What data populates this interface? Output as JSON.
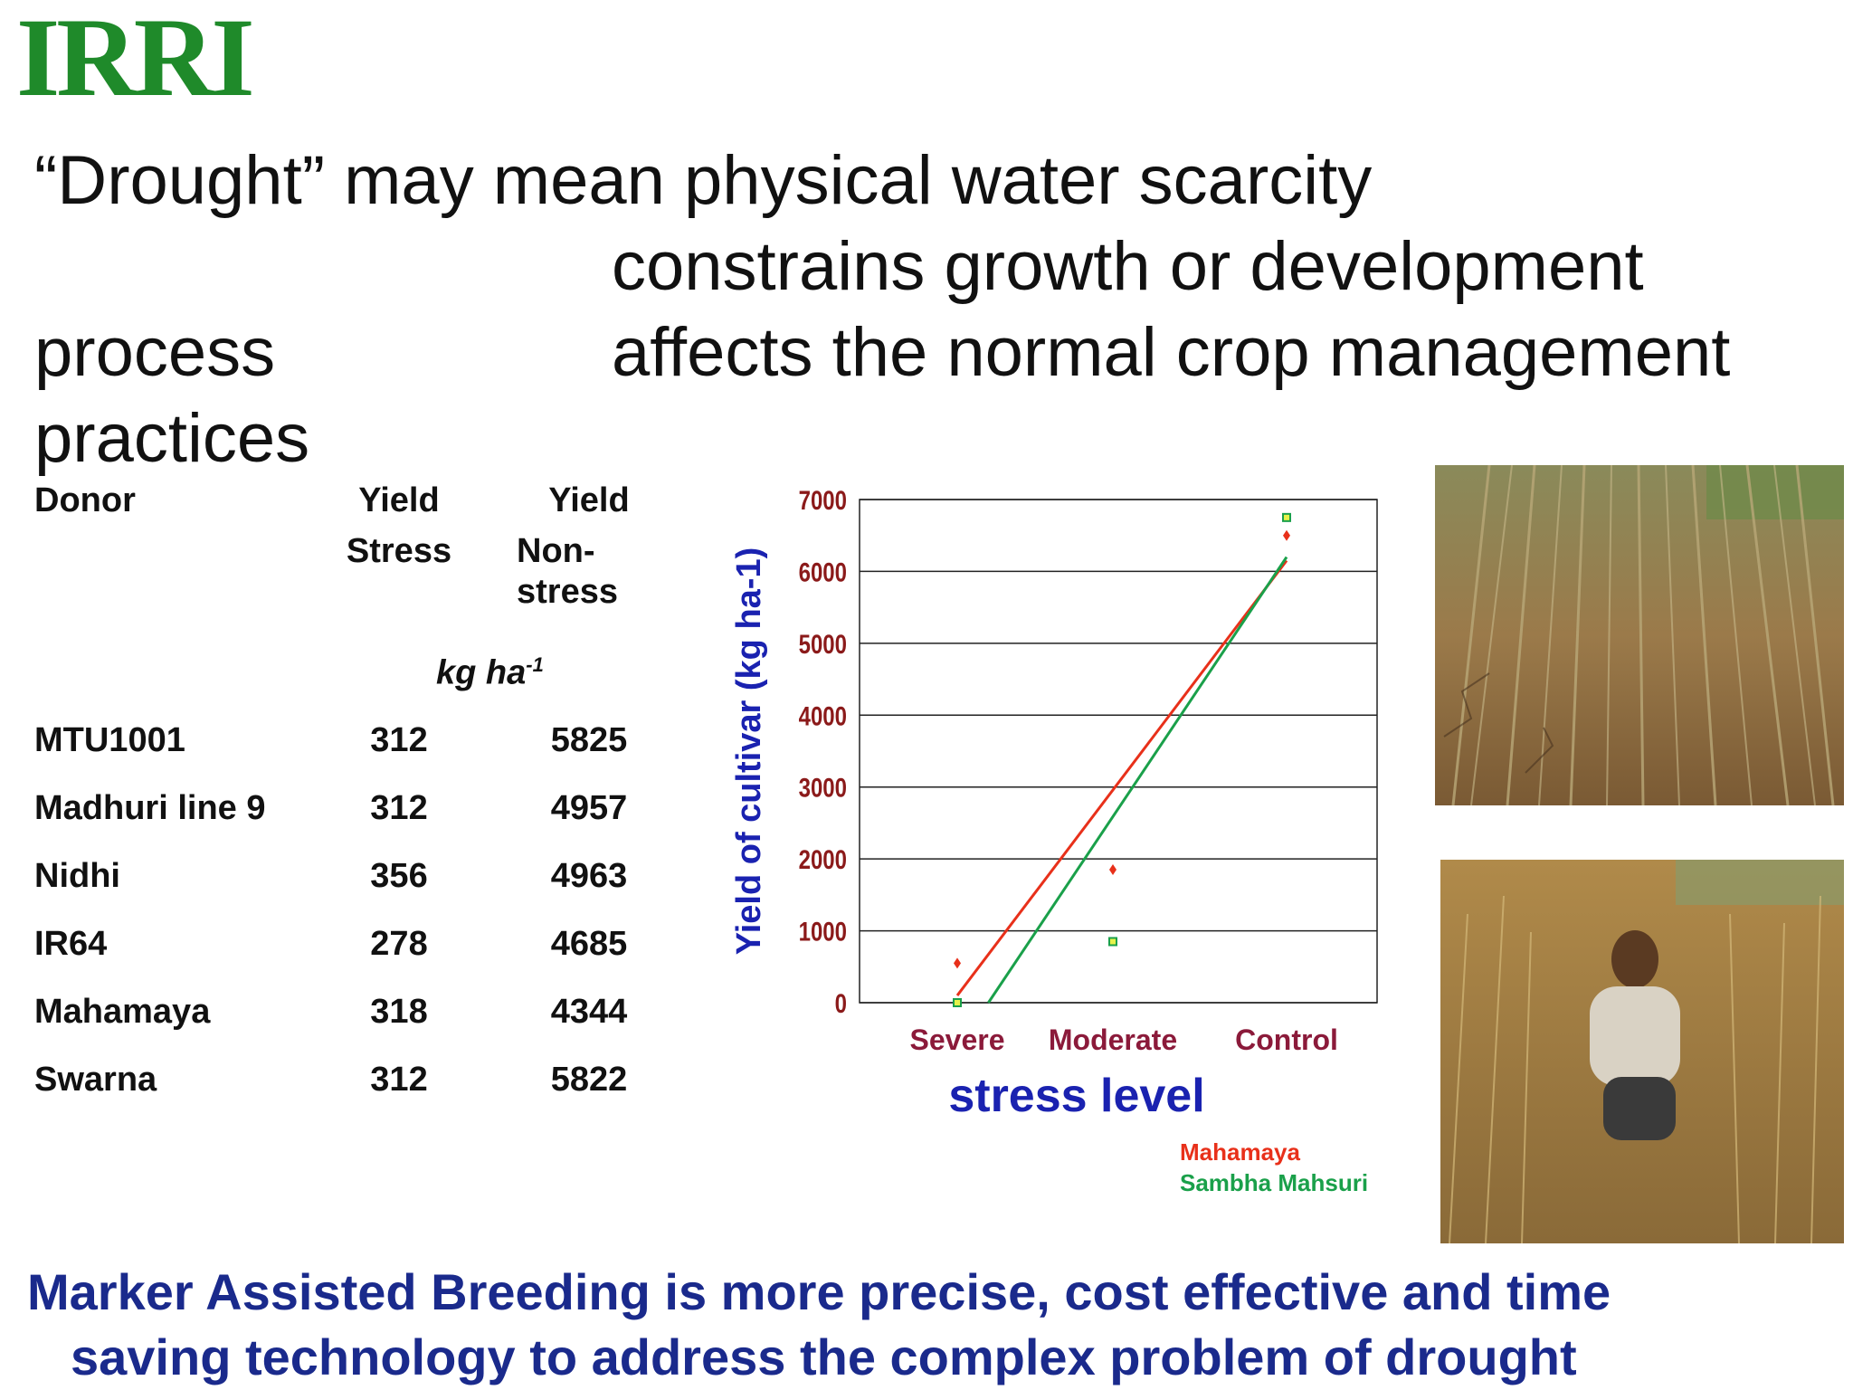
{
  "logo": "IRRI",
  "heading": {
    "line1": "“Drought” may mean physical water scarcity",
    "line2": "constrains  growth or development",
    "line3a": "process",
    "line3b": "affects the normal crop management",
    "line4": "practices"
  },
  "table": {
    "headers": {
      "donor": "Donor",
      "yield_stress_1": "Yield",
      "yield_stress_2": "Stress",
      "yield_non_1": "Yield",
      "yield_non_2": "Non-",
      "yield_non_3": "stress"
    },
    "unit": "kg ha",
    "unit_sup": "-1",
    "rows": [
      {
        "donor": "MTU1001",
        "stress": "312",
        "nonstress": "5825"
      },
      {
        "donor": "Madhuri line 9",
        "stress": "312",
        "nonstress": "4957"
      },
      {
        "donor": "Nidhi",
        "stress": "356",
        "nonstress": "4963"
      },
      {
        "donor": "IR64",
        "stress": "278",
        "nonstress": "4685"
      },
      {
        "donor": "Mahamaya",
        "stress": "318",
        "nonstress": "4344"
      },
      {
        "donor": "Swarna",
        "stress": "312",
        "nonstress": "5822"
      }
    ]
  },
  "chart_data": {
    "type": "scatter",
    "categories": [
      "Severe",
      "Moderate",
      "Control"
    ],
    "xlabel": "stress level",
    "ylabel": "Yield of cultivar (kg ha-1)",
    "ylim": [
      0,
      7000
    ],
    "yticks": [
      "0",
      "1000",
      "2000",
      "3000",
      "4000",
      "5000",
      "6000",
      "7000"
    ],
    "grid": true,
    "legend_position": "bottom-right",
    "series": [
      {
        "name": "Mahamaya",
        "color": "#e8301a",
        "marker": "diamond",
        "values": [
          550,
          1850,
          6500
        ],
        "trend": [
          [
            0.0,
            100
          ],
          [
            2.0,
            6150
          ]
        ]
      },
      {
        "name": "Sambha  Mahsuri",
        "color": "#1aa04a",
        "marker": "square",
        "values": [
          0,
          850,
          6750
        ],
        "trend": [
          [
            0.2,
            0
          ],
          [
            2.0,
            6200
          ]
        ]
      }
    ]
  },
  "footer": {
    "line1": "Marker Assisted Breeding  is more precise, cost effective and time",
    "line2": "saving technology  to address the complex problem of  drought"
  }
}
